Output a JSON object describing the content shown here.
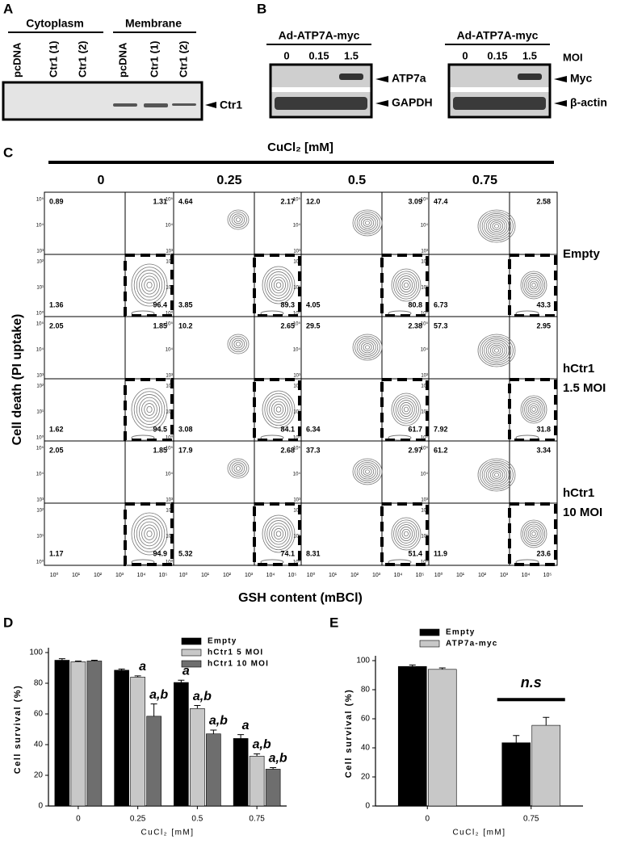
{
  "panel_labels": [
    "A",
    "B",
    "C",
    "D",
    "E"
  ],
  "panel_a": {
    "groups": [
      "Cytoplasm",
      "Membrane"
    ],
    "lanes": [
      "pcDNA",
      "Ctr1 (1)",
      "Ctr1 (2)"
    ],
    "band": "Ctr1"
  },
  "panel_b": {
    "construct": "Ad-ATP7A-myc",
    "doses": [
      "0",
      "0.15",
      "1.5"
    ],
    "dose_unit": "MOI",
    "left_bands": [
      "ATP7a",
      "GAPDH"
    ],
    "right_bands": [
      "Myc",
      "β-actin"
    ]
  },
  "panel_c": {
    "treatment": "CuCl₂ [mM]",
    "concentrations": [
      "0",
      "0.25",
      "0.5",
      "0.75"
    ],
    "y_label": "Cell death (PI uptake)",
    "x_label": "GSH content (mBCl)",
    "axis_ticks": [
      "10⁰",
      "10¹",
      "10²",
      "10³",
      "10⁴",
      "10⁵"
    ],
    "rows": [
      {
        "label": [
          "Empty"
        ],
        "cells": [
          [
            "0.89",
            "1.31",
            "1.36",
            "96.4"
          ],
          [
            "4.64",
            "2.17",
            "3.85",
            "89.3"
          ],
          [
            "12.0",
            "3.09",
            "4.05",
            "80.8"
          ],
          [
            "47.4",
            "2.58",
            "6.73",
            "43.3"
          ]
        ]
      },
      {
        "label": [
          "hCtr1",
          "1.5 MOI"
        ],
        "cells": [
          [
            "2.05",
            "1.85",
            "1.62",
            "94.5"
          ],
          [
            "10.2",
            "2.65",
            "3.08",
            "84.1"
          ],
          [
            "29.5",
            "2.38",
            "6.34",
            "61.7"
          ],
          [
            "57.3",
            "2.95",
            "7.92",
            "31.8"
          ]
        ]
      },
      {
        "label": [
          "hCtr1",
          "10 MOI"
        ],
        "cells": [
          [
            "2.05",
            "1.85",
            "1.17",
            "94.9"
          ],
          [
            "17.9",
            "2.68",
            "5.32",
            "74.1"
          ],
          [
            "37.3",
            "2.97",
            "8.31",
            "51.4"
          ],
          [
            "61.2",
            "3.34",
            "11.9",
            "23.6"
          ]
        ]
      }
    ]
  },
  "chart_data": [
    {
      "type": "bar",
      "categories": [
        "0",
        "0.25",
        "0.5",
        "0.75"
      ],
      "xlabel": "CuCl₂ [mM]",
      "ylabel": "Cell survival (%)",
      "ylim": [
        0,
        100
      ],
      "yticks": [
        0,
        20,
        40,
        60,
        80,
        100
      ],
      "series": [
        {
          "name": "Empty",
          "color": "#000000",
          "values": [
            95,
            88.5,
            80.5,
            44
          ],
          "errors": [
            1,
            0.8,
            1.5,
            2.5
          ],
          "labels": [
            null,
            null,
            "a",
            "a"
          ]
        },
        {
          "name": "hCtr1 5 MOI",
          "color": "#c8c8c8",
          "values": [
            94,
            84,
            63.5,
            32.5
          ],
          "errors": [
            0.5,
            0.8,
            2,
            1.5
          ],
          "labels": [
            null,
            "a",
            "a,b",
            "a,b"
          ]
        },
        {
          "name": "hCtr1 10 MOI",
          "color": "#6e6e6e",
          "values": [
            94.5,
            58.5,
            47,
            24
          ],
          "errors": [
            0.5,
            8,
            2.5,
            1
          ],
          "labels": [
            null,
            "a,b",
            "a,b",
            "a,b"
          ]
        }
      ]
    },
    {
      "type": "bar",
      "categories": [
        "0",
        "0.75"
      ],
      "xlabel": "CuCl₂ [mM]",
      "ylabel": "Cell survival (%)",
      "ylim": [
        0,
        100
      ],
      "yticks": [
        0,
        20,
        40,
        60,
        80,
        100
      ],
      "annotation": "n.s",
      "series": [
        {
          "name": "Empty",
          "color": "#000000",
          "values": [
            96,
            43.5
          ],
          "errors": [
            1,
            5
          ]
        },
        {
          "name": "ATP7a-myc",
          "color": "#c8c8c8",
          "values": [
            94,
            55.5
          ],
          "errors": [
            1,
            5.5
          ]
        }
      ]
    }
  ]
}
